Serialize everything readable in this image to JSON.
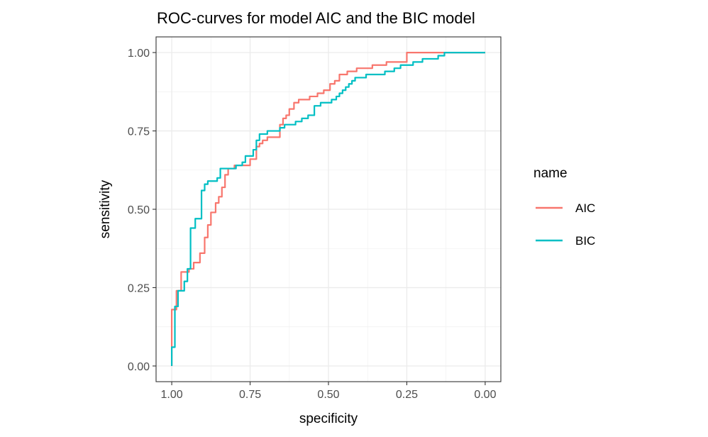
{
  "chart_data": {
    "type": "line",
    "title": "ROC-curves for model AIC and the BIC model",
    "xlabel": "specificity",
    "ylabel": "sensitivity",
    "xlim": [
      1.05,
      -0.05
    ],
    "ylim": [
      -0.05,
      1.05
    ],
    "x_reversed": true,
    "x_ticks": [
      1.0,
      0.75,
      0.5,
      0.25,
      0.0
    ],
    "x_tick_labels": [
      "1.00",
      "0.75",
      "0.50",
      "0.25",
      "0.00"
    ],
    "y_ticks": [
      0.0,
      0.25,
      0.5,
      0.75,
      1.0
    ],
    "y_tick_labels": [
      "0.00",
      "0.25",
      "0.50",
      "0.75",
      "1.00"
    ],
    "grid": true,
    "legend": {
      "title": "name",
      "position": "right"
    },
    "series": [
      {
        "name": "AIC",
        "color": "#F8766D",
        "points": [
          [
            1.0,
            0.0
          ],
          [
            1.0,
            0.18
          ],
          [
            0.985,
            0.18
          ],
          [
            0.985,
            0.24
          ],
          [
            0.97,
            0.24
          ],
          [
            0.97,
            0.3
          ],
          [
            0.945,
            0.3
          ],
          [
            0.945,
            0.31
          ],
          [
            0.93,
            0.31
          ],
          [
            0.93,
            0.33
          ],
          [
            0.91,
            0.33
          ],
          [
            0.91,
            0.36
          ],
          [
            0.895,
            0.36
          ],
          [
            0.895,
            0.41
          ],
          [
            0.885,
            0.41
          ],
          [
            0.885,
            0.45
          ],
          [
            0.875,
            0.45
          ],
          [
            0.875,
            0.49
          ],
          [
            0.86,
            0.49
          ],
          [
            0.86,
            0.52
          ],
          [
            0.85,
            0.52
          ],
          [
            0.85,
            0.54
          ],
          [
            0.84,
            0.54
          ],
          [
            0.84,
            0.57
          ],
          [
            0.83,
            0.57
          ],
          [
            0.83,
            0.61
          ],
          [
            0.82,
            0.61
          ],
          [
            0.82,
            0.63
          ],
          [
            0.8,
            0.63
          ],
          [
            0.8,
            0.64
          ],
          [
            0.75,
            0.64
          ],
          [
            0.75,
            0.66
          ],
          [
            0.73,
            0.66
          ],
          [
            0.73,
            0.7
          ],
          [
            0.72,
            0.7
          ],
          [
            0.72,
            0.71
          ],
          [
            0.71,
            0.71
          ],
          [
            0.71,
            0.72
          ],
          [
            0.695,
            0.72
          ],
          [
            0.695,
            0.73
          ],
          [
            0.655,
            0.73
          ],
          [
            0.655,
            0.77
          ],
          [
            0.645,
            0.77
          ],
          [
            0.645,
            0.79
          ],
          [
            0.635,
            0.79
          ],
          [
            0.635,
            0.8
          ],
          [
            0.625,
            0.8
          ],
          [
            0.625,
            0.82
          ],
          [
            0.61,
            0.82
          ],
          [
            0.61,
            0.84
          ],
          [
            0.595,
            0.84
          ],
          [
            0.595,
            0.85
          ],
          [
            0.56,
            0.85
          ],
          [
            0.56,
            0.86
          ],
          [
            0.535,
            0.86
          ],
          [
            0.535,
            0.87
          ],
          [
            0.515,
            0.87
          ],
          [
            0.515,
            0.88
          ],
          [
            0.495,
            0.88
          ],
          [
            0.495,
            0.9
          ],
          [
            0.48,
            0.9
          ],
          [
            0.48,
            0.91
          ],
          [
            0.465,
            0.91
          ],
          [
            0.465,
            0.93
          ],
          [
            0.44,
            0.93
          ],
          [
            0.44,
            0.94
          ],
          [
            0.41,
            0.94
          ],
          [
            0.41,
            0.95
          ],
          [
            0.36,
            0.95
          ],
          [
            0.36,
            0.96
          ],
          [
            0.315,
            0.96
          ],
          [
            0.315,
            0.97
          ],
          [
            0.25,
            0.97
          ],
          [
            0.25,
            1.0
          ],
          [
            0.0,
            1.0
          ]
        ]
      },
      {
        "name": "BIC",
        "color": "#00BFC4",
        "points": [
          [
            1.0,
            0.0
          ],
          [
            1.0,
            0.06
          ],
          [
            0.99,
            0.06
          ],
          [
            0.99,
            0.19
          ],
          [
            0.98,
            0.19
          ],
          [
            0.98,
            0.24
          ],
          [
            0.96,
            0.24
          ],
          [
            0.96,
            0.27
          ],
          [
            0.95,
            0.27
          ],
          [
            0.95,
            0.31
          ],
          [
            0.94,
            0.31
          ],
          [
            0.94,
            0.44
          ],
          [
            0.925,
            0.44
          ],
          [
            0.925,
            0.47
          ],
          [
            0.905,
            0.47
          ],
          [
            0.905,
            0.56
          ],
          [
            0.895,
            0.56
          ],
          [
            0.895,
            0.58
          ],
          [
            0.885,
            0.58
          ],
          [
            0.885,
            0.59
          ],
          [
            0.855,
            0.59
          ],
          [
            0.855,
            0.6
          ],
          [
            0.845,
            0.6
          ],
          [
            0.845,
            0.63
          ],
          [
            0.795,
            0.63
          ],
          [
            0.795,
            0.64
          ],
          [
            0.775,
            0.64
          ],
          [
            0.775,
            0.65
          ],
          [
            0.765,
            0.65
          ],
          [
            0.765,
            0.67
          ],
          [
            0.74,
            0.67
          ],
          [
            0.74,
            0.69
          ],
          [
            0.73,
            0.69
          ],
          [
            0.73,
            0.72
          ],
          [
            0.72,
            0.72
          ],
          [
            0.72,
            0.74
          ],
          [
            0.695,
            0.74
          ],
          [
            0.695,
            0.75
          ],
          [
            0.655,
            0.75
          ],
          [
            0.655,
            0.76
          ],
          [
            0.64,
            0.76
          ],
          [
            0.64,
            0.77
          ],
          [
            0.605,
            0.77
          ],
          [
            0.605,
            0.78
          ],
          [
            0.585,
            0.78
          ],
          [
            0.585,
            0.79
          ],
          [
            0.565,
            0.79
          ],
          [
            0.565,
            0.8
          ],
          [
            0.545,
            0.8
          ],
          [
            0.545,
            0.83
          ],
          [
            0.525,
            0.83
          ],
          [
            0.525,
            0.84
          ],
          [
            0.49,
            0.84
          ],
          [
            0.49,
            0.85
          ],
          [
            0.475,
            0.85
          ],
          [
            0.475,
            0.86
          ],
          [
            0.465,
            0.86
          ],
          [
            0.465,
            0.87
          ],
          [
            0.455,
            0.87
          ],
          [
            0.455,
            0.88
          ],
          [
            0.445,
            0.88
          ],
          [
            0.445,
            0.89
          ],
          [
            0.435,
            0.89
          ],
          [
            0.435,
            0.9
          ],
          [
            0.425,
            0.9
          ],
          [
            0.425,
            0.91
          ],
          [
            0.415,
            0.91
          ],
          [
            0.415,
            0.92
          ],
          [
            0.38,
            0.92
          ],
          [
            0.38,
            0.93
          ],
          [
            0.32,
            0.93
          ],
          [
            0.32,
            0.94
          ],
          [
            0.29,
            0.94
          ],
          [
            0.29,
            0.95
          ],
          [
            0.27,
            0.95
          ],
          [
            0.27,
            0.96
          ],
          [
            0.23,
            0.96
          ],
          [
            0.23,
            0.97
          ],
          [
            0.2,
            0.97
          ],
          [
            0.2,
            0.98
          ],
          [
            0.15,
            0.98
          ],
          [
            0.15,
            0.99
          ],
          [
            0.13,
            0.99
          ],
          [
            0.13,
            1.0
          ],
          [
            0.0,
            1.0
          ]
        ]
      }
    ]
  }
}
